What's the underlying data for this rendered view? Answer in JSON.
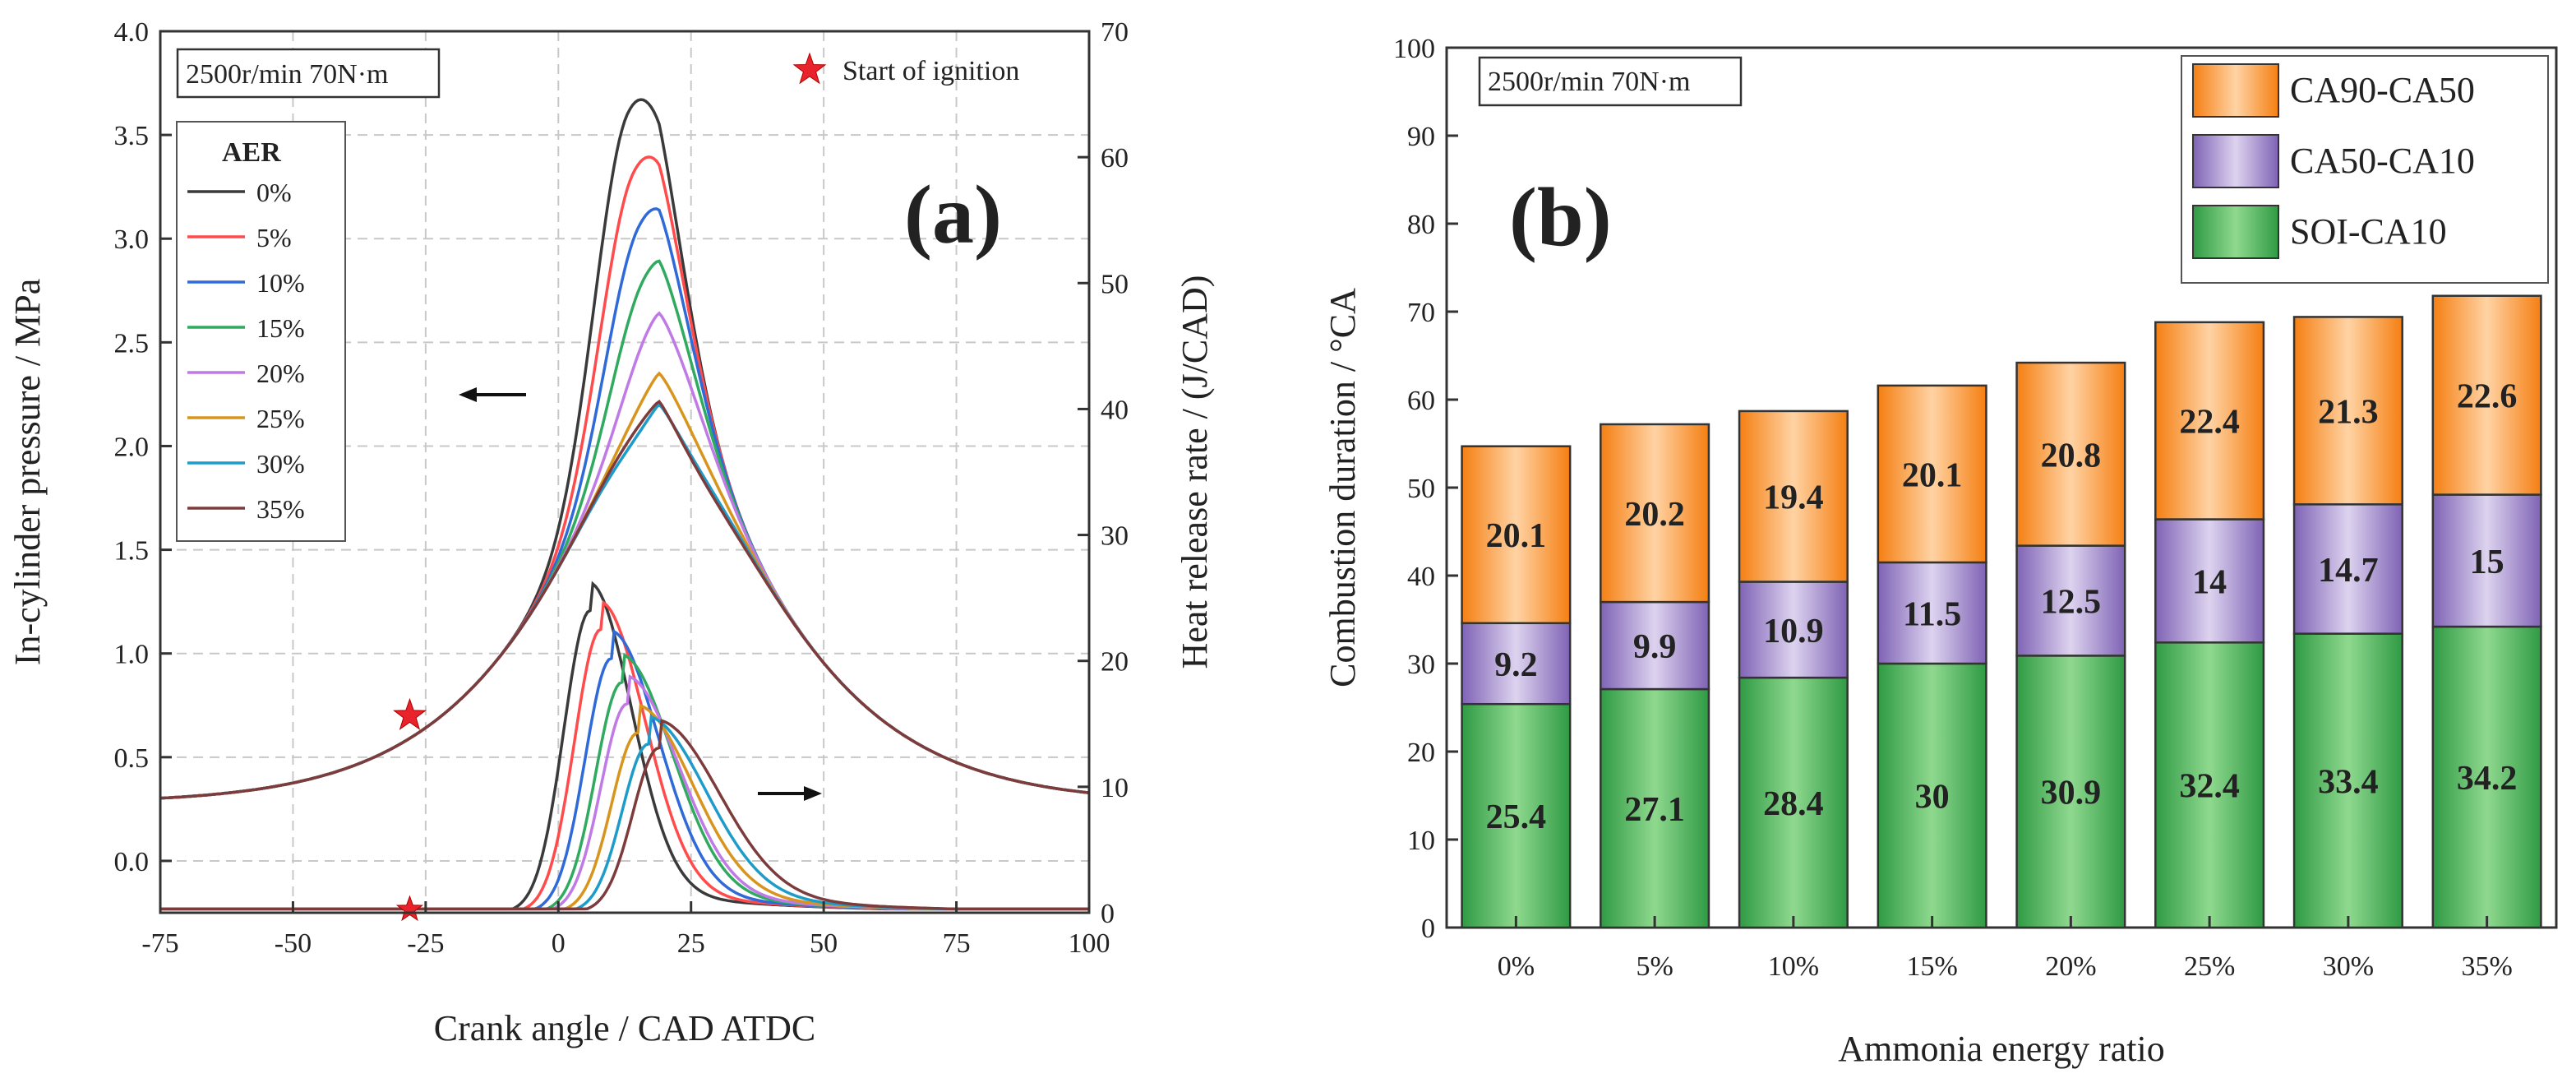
{
  "figure": {
    "panel_a_label": "(a)",
    "panel_b_label": "(b)",
    "condition_a": "2500r/min 70N·m",
    "condition_b": "2500r/min 70N·m",
    "ignition_legend": "Start of ignition"
  },
  "chart_data": [
    {
      "type": "line",
      "title": "",
      "xlabel": "Crank angle / CAD ATDC",
      "ylabel": "In-cylinder pressure / MPa",
      "ylabel_right": "Heat release rate / (J/CAD)",
      "xlim": [
        -75,
        100
      ],
      "xticks": [
        -75,
        -50,
        -25,
        0,
        25,
        50,
        75,
        100
      ],
      "ylim": [
        -0.25,
        4.0
      ],
      "yticks": [
        0.0,
        0.5,
        1.0,
        1.5,
        2.0,
        2.5,
        3.0,
        3.5,
        4.0
      ],
      "ylim_right": [
        0,
        70
      ],
      "yticks_right": [
        0,
        10,
        20,
        30,
        40,
        50,
        60,
        70
      ],
      "grid": "dashed",
      "legend_title": "AER",
      "legend_position": "top-left",
      "ignition_marker": {
        "crank_angle": -28,
        "pressure": 0.7,
        "heat_release": 0
      },
      "series": [
        {
          "name": "0%",
          "color": "#3a3a3a",
          "pressure_peak": 3.6,
          "pressure_peak_angle": 13,
          "hrr_peak": 24.0,
          "hrr_peak_angle": 6
        },
        {
          "name": "5%",
          "color": "#ff4b4b",
          "pressure_peak": 3.31,
          "pressure_peak_angle": 14,
          "hrr_peak": 22.5,
          "hrr_peak_angle": 8
        },
        {
          "name": "10%",
          "color": "#2f6ad8",
          "pressure_peak": 3.05,
          "pressure_peak_angle": 15,
          "hrr_peak": 20.2,
          "hrr_peak_angle": 10
        },
        {
          "name": "15%",
          "color": "#2faa5f",
          "pressure_peak": 2.8,
          "pressure_peak_angle": 16,
          "hrr_peak": 18.3,
          "hrr_peak_angle": 12
        },
        {
          "name": "20%",
          "color": "#c07ae6",
          "pressure_peak": 2.61,
          "pressure_peak_angle": 18,
          "hrr_peak": 16.6,
          "hrr_peak_angle": 13
        },
        {
          "name": "25%",
          "color": "#d8951d",
          "pressure_peak": 2.35,
          "pressure_peak_angle": 19,
          "hrr_peak": 14.3,
          "hrr_peak_angle": 15
        },
        {
          "name": "30%",
          "color": "#1e9cc9",
          "pressure_peak": 2.2,
          "pressure_peak_angle": 19,
          "hrr_peak": 13.4,
          "hrr_peak_angle": 17
        },
        {
          "name": "35%",
          "color": "#7d3b3b",
          "pressure_peak": 2.13,
          "pressure_peak_angle": 21,
          "hrr_peak": 13.1,
          "hrr_peak_angle": 19
        }
      ]
    },
    {
      "type": "bar",
      "stacked": true,
      "title": "",
      "xlabel": "Ammonia energy ratio",
      "ylabel": "Combustion duration / °CA",
      "categories": [
        "0%",
        "5%",
        "10%",
        "15%",
        "20%",
        "25%",
        "30%",
        "35%"
      ],
      "ylim": [
        0,
        100
      ],
      "yticks": [
        0,
        10,
        20,
        30,
        40,
        50,
        60,
        70,
        80,
        90,
        100
      ],
      "legend_position": "top-right",
      "series": [
        {
          "name": "SOI-CA10",
          "color": "#4fae57",
          "values": [
            25.4,
            27.1,
            28.4,
            30,
            30.9,
            32.4,
            33.4,
            34.2
          ]
        },
        {
          "name": "CA50-CA10",
          "color": "#9b86c6",
          "values": [
            9.2,
            9.9,
            10.9,
            11.5,
            12.5,
            14,
            14.7,
            15
          ]
        },
        {
          "name": "CA90-CA50",
          "color": "#f99a3c",
          "values": [
            20.1,
            20.2,
            19.4,
            20.1,
            20.8,
            22.4,
            21.3,
            22.6
          ]
        }
      ]
    }
  ]
}
